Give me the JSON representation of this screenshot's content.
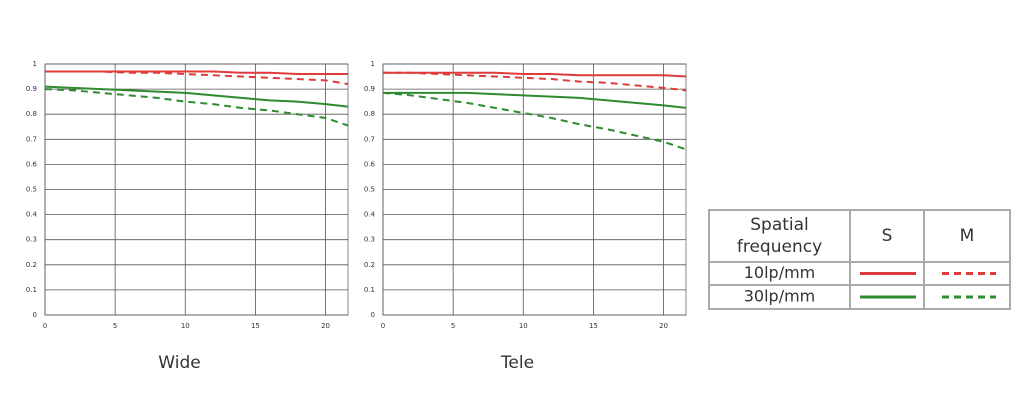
{
  "chart_data": [
    {
      "type": "line",
      "title": "Wide",
      "x": [
        0,
        2,
        4,
        6,
        8,
        10,
        12,
        14,
        16,
        18,
        20,
        21.6
      ],
      "xlim": [
        0,
        21.6
      ],
      "xticks": [
        0,
        5,
        10,
        15,
        20
      ],
      "ylim": [
        0,
        1
      ],
      "yticks": [
        0,
        0.1,
        0.2,
        0.3,
        0.4,
        0.5,
        0.6,
        0.7,
        0.8,
        0.9,
        1
      ],
      "grid": true,
      "series": [
        {
          "color": "#e03a3a",
          "dash": false,
          "values": [
            0.97,
            0.97,
            0.97,
            0.97,
            0.97,
            0.97,
            0.97,
            0.965,
            0.965,
            0.96,
            0.96,
            0.96
          ]
        },
        {
          "color": "#e03a3a",
          "dash": true,
          "values": [
            0.97,
            0.97,
            0.97,
            0.965,
            0.965,
            0.96,
            0.955,
            0.95,
            0.945,
            0.94,
            0.935,
            0.92
          ]
        },
        {
          "color": "#2e8b2e",
          "dash": false,
          "values": [
            0.91,
            0.905,
            0.9,
            0.895,
            0.89,
            0.885,
            0.875,
            0.865,
            0.855,
            0.85,
            0.84,
            0.83
          ]
        },
        {
          "color": "#2e8b2e",
          "dash": true,
          "values": [
            0.9,
            0.895,
            0.885,
            0.875,
            0.865,
            0.85,
            0.84,
            0.825,
            0.815,
            0.8,
            0.785,
            0.755
          ]
        }
      ]
    },
    {
      "type": "line",
      "title": "Tele",
      "x": [
        0,
        2,
        4,
        6,
        8,
        10,
        12,
        14,
        16,
        18,
        20,
        21.6
      ],
      "xlim": [
        0,
        21.6
      ],
      "xticks": [
        0,
        5,
        10,
        15,
        20
      ],
      "ylim": [
        0,
        1
      ],
      "yticks": [
        0,
        0.1,
        0.2,
        0.3,
        0.4,
        0.5,
        0.6,
        0.7,
        0.8,
        0.9,
        1
      ],
      "grid": true,
      "series": [
        {
          "color": "#e03a3a",
          "dash": false,
          "values": [
            0.965,
            0.965,
            0.965,
            0.965,
            0.965,
            0.96,
            0.96,
            0.955,
            0.955,
            0.955,
            0.955,
            0.95
          ]
        },
        {
          "color": "#e03a3a",
          "dash": true,
          "values": [
            0.965,
            0.965,
            0.96,
            0.955,
            0.95,
            0.945,
            0.94,
            0.93,
            0.925,
            0.915,
            0.905,
            0.895
          ]
        },
        {
          "color": "#2e8b2e",
          "dash": false,
          "values": [
            0.885,
            0.885,
            0.885,
            0.885,
            0.88,
            0.875,
            0.87,
            0.865,
            0.855,
            0.845,
            0.835,
            0.825
          ]
        },
        {
          "color": "#2e8b2e",
          "dash": true,
          "values": [
            0.885,
            0.875,
            0.86,
            0.845,
            0.825,
            0.805,
            0.785,
            0.76,
            0.74,
            0.715,
            0.69,
            0.66
          ]
        }
      ]
    }
  ],
  "legend": {
    "header": [
      "Spatial frequency",
      "S",
      "M"
    ],
    "rows": [
      {
        "label": "10lp/mm",
        "color": "#e03a3a"
      },
      {
        "label": "30lp/mm",
        "color": "#2e8b2e"
      }
    ]
  }
}
